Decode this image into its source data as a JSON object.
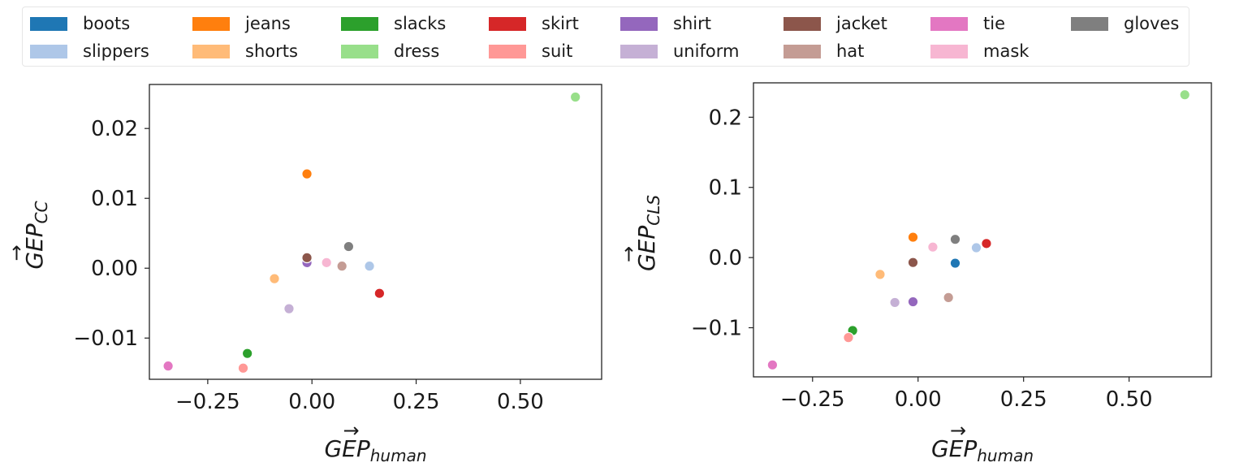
{
  "legend": {
    "placement": "top",
    "entries": [
      {
        "name": "boots",
        "color": "#1f77b4"
      },
      {
        "name": "slippers",
        "color": "#aec7e8"
      },
      {
        "name": "jeans",
        "color": "#ff7f0e"
      },
      {
        "name": "shorts",
        "color": "#ffbb78"
      },
      {
        "name": "slacks",
        "color": "#2ca02c"
      },
      {
        "name": "dress",
        "color": "#98df8a"
      },
      {
        "name": "skirt",
        "color": "#d62728"
      },
      {
        "name": "suit",
        "color": "#ff9896"
      },
      {
        "name": "shirt",
        "color": "#9467bd"
      },
      {
        "name": "uniform",
        "color": "#c5b0d5"
      },
      {
        "name": "jacket",
        "color": "#8c564b"
      },
      {
        "name": "hat",
        "color": "#c49c94"
      },
      {
        "name": "tie",
        "color": "#e377c2"
      },
      {
        "name": "mask",
        "color": "#f7b6d2"
      },
      {
        "name": "gloves",
        "color": "#7f7f7f"
      }
    ]
  },
  "chart_data": [
    {
      "type": "scatter",
      "xlabel": "GEP",
      "xlabel_sub": "human",
      "ylabel": "GEP",
      "ylabel_sub": "CC",
      "xlim": [
        -0.39,
        0.695
      ],
      "ylim": [
        -0.0159,
        0.0263
      ],
      "xticks": [
        -0.25,
        0.0,
        0.25,
        0.5
      ],
      "xtick_labels": [
        "−0.25",
        "0.00",
        "0.25",
        "0.50"
      ],
      "yticks": [
        -0.01,
        0.0,
        0.01,
        0.02
      ],
      "ytick_labels": [
        "−0.01",
        "0.00",
        "0.01",
        "0.02"
      ],
      "grid": false,
      "points": [
        {
          "series": "boots",
          "x": 0.088,
          "y": 0.0031,
          "color": "#1f77b4"
        },
        {
          "series": "slippers",
          "x": 0.138,
          "y": 0.0003,
          "color": "#aec7e8"
        },
        {
          "series": "jeans",
          "x": -0.012,
          "y": 0.0135,
          "color": "#ff7f0e"
        },
        {
          "series": "shorts",
          "x": -0.09,
          "y": -0.0015,
          "color": "#ffbb78"
        },
        {
          "series": "slacks",
          "x": -0.155,
          "y": -0.0122,
          "color": "#2ca02c"
        },
        {
          "series": "dress",
          "x": 0.632,
          "y": 0.0245,
          "color": "#98df8a"
        },
        {
          "series": "skirt",
          "x": 0.162,
          "y": -0.0036,
          "color": "#d62728"
        },
        {
          "series": "suit",
          "x": -0.165,
          "y": -0.0143,
          "color": "#ff9896"
        },
        {
          "series": "shirt",
          "x": -0.012,
          "y": 0.0008,
          "color": "#9467bd"
        },
        {
          "series": "uniform",
          "x": -0.055,
          "y": -0.0058,
          "color": "#c5b0d5"
        },
        {
          "series": "jacket",
          "x": -0.012,
          "y": 0.0015,
          "color": "#8c564b"
        },
        {
          "series": "hat",
          "x": 0.072,
          "y": 0.0003,
          "color": "#c49c94"
        },
        {
          "series": "tie",
          "x": -0.345,
          "y": -0.014,
          "color": "#e377c2"
        },
        {
          "series": "mask",
          "x": 0.035,
          "y": 0.0008,
          "color": "#f7b6d2"
        },
        {
          "series": "gloves",
          "x": 0.088,
          "y": 0.0031,
          "color": "#7f7f7f"
        }
      ]
    },
    {
      "type": "scatter",
      "xlabel": "GEP",
      "xlabel_sub": "human",
      "ylabel": "GEP",
      "ylabel_sub": "CLS",
      "xlim": [
        -0.39,
        0.695
      ],
      "ylim": [
        -0.17,
        0.249
      ],
      "xticks": [
        -0.25,
        0.0,
        0.25,
        0.5
      ],
      "xtick_labels": [
        "−0.25",
        "0.00",
        "0.25",
        "0.50"
      ],
      "yticks": [
        -0.1,
        0.0,
        0.1,
        0.2
      ],
      "ytick_labels": [
        "−0.1",
        "0.0",
        "0.1",
        "0.2"
      ],
      "grid": false,
      "points": [
        {
          "series": "boots",
          "x": 0.088,
          "y": -0.008,
          "color": "#1f77b4"
        },
        {
          "series": "slippers",
          "x": 0.138,
          "y": 0.014,
          "color": "#aec7e8"
        },
        {
          "series": "jeans",
          "x": -0.012,
          "y": 0.029,
          "color": "#ff7f0e"
        },
        {
          "series": "shorts",
          "x": -0.09,
          "y": -0.024,
          "color": "#ffbb78"
        },
        {
          "series": "slacks",
          "x": -0.155,
          "y": -0.104,
          "color": "#2ca02c"
        },
        {
          "series": "dress",
          "x": 0.632,
          "y": 0.232,
          "color": "#98df8a"
        },
        {
          "series": "skirt",
          "x": 0.162,
          "y": 0.02,
          "color": "#d62728"
        },
        {
          "series": "suit",
          "x": -0.165,
          "y": -0.114,
          "color": "#ff9896"
        },
        {
          "series": "shirt",
          "x": -0.012,
          "y": -0.063,
          "color": "#9467bd"
        },
        {
          "series": "uniform",
          "x": -0.055,
          "y": -0.064,
          "color": "#c5b0d5"
        },
        {
          "series": "jacket",
          "x": -0.012,
          "y": -0.007,
          "color": "#8c564b"
        },
        {
          "series": "hat",
          "x": 0.072,
          "y": -0.057,
          "color": "#c49c94"
        },
        {
          "series": "tie",
          "x": -0.345,
          "y": -0.153,
          "color": "#e377c2"
        },
        {
          "series": "mask",
          "x": 0.035,
          "y": 0.015,
          "color": "#f7b6d2"
        },
        {
          "series": "gloves",
          "x": 0.088,
          "y": 0.026,
          "color": "#7f7f7f"
        }
      ]
    }
  ]
}
